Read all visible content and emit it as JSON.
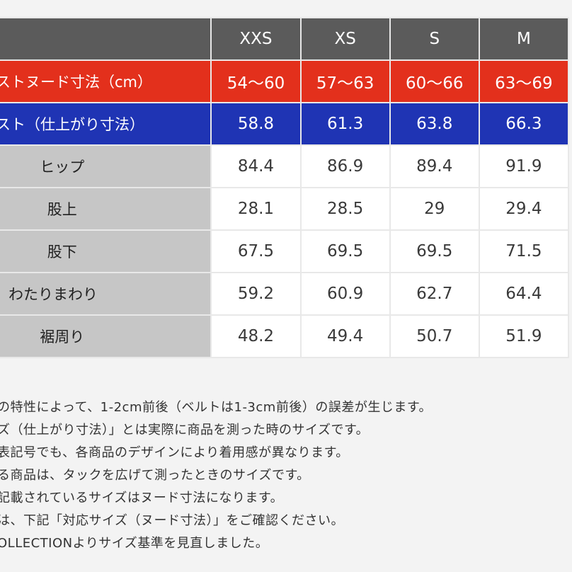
{
  "columns": [
    "XXS",
    "XS",
    "S",
    "M"
  ],
  "rows": [
    {
      "label": "ストヌード寸法（cm）",
      "values": [
        "54〜60",
        "57〜63",
        "60〜66",
        "63〜69"
      ]
    },
    {
      "label": "スト（仕上がり寸法）",
      "values": [
        "58.8",
        "61.3",
        "63.8",
        "66.3"
      ]
    },
    {
      "label": "ヒップ",
      "values": [
        "84.4",
        "86.9",
        "89.4",
        "91.9"
      ]
    },
    {
      "label": "股上",
      "values": [
        "28.1",
        "28.5",
        "29",
        "29.4"
      ]
    },
    {
      "label": "股下",
      "values": [
        "67.5",
        "69.5",
        "69.5",
        "71.5"
      ]
    },
    {
      "label": "わたりまわり",
      "values": [
        "59.2",
        "60.9",
        "62.7",
        "64.4"
      ]
    },
    {
      "label": "裾周り",
      "values": [
        "48.2",
        "49.4",
        "50.7",
        "51.9"
      ]
    }
  ],
  "notes": [
    "の特性によって、1-2cm前後（ベルトは1-3cm前後）の誤差が生じます。",
    "ズ（仕上がり寸法）」とは実際に商品を測った時のサイズです。",
    "表記号でも、各商品のデザインにより着用感が異なります。",
    "る商品は、タックを広げて測ったときのサイズです。",
    "記載されているサイズはヌード寸法になります。",
    "は、下記「対応サイズ（ヌード寸法）」をご確認ください。",
    "OLLECTIONよりサイズ基準を見直しました。"
  ],
  "colors": {
    "header_bg": "#5b5b5b",
    "nude_row_bg": "#e3301c",
    "finished_row_bg": "#1f34b4",
    "label_bg": "#c6c6c6"
  }
}
